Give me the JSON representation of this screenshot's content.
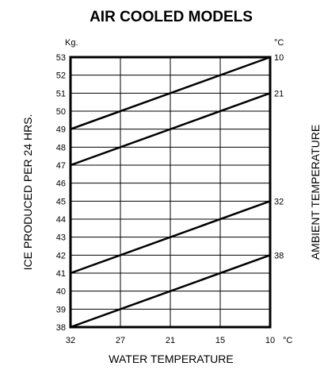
{
  "chart_data": {
    "type": "line",
    "title": "AIR COOLED MODELS",
    "xlabel": "WATER TEMPERATURE",
    "ylabel": "ICE PRODUCED PER 24 HRS.",
    "y2label": "AMBIENT TEMPERATURE",
    "y_unit": "Kg.",
    "x_unit": "°C",
    "legend_unit": "°C",
    "x_ticks": [
      "32",
      "27",
      "21",
      "15",
      "10"
    ],
    "y_ticks": [
      38,
      39,
      40,
      41,
      42,
      43,
      44,
      45,
      46,
      47,
      48,
      49,
      50,
      51,
      52,
      53
    ],
    "ylim": [
      38,
      53
    ],
    "grid": true,
    "series": [
      {
        "name": "10",
        "x": [
          "32",
          "10"
        ],
        "values": [
          49,
          53
        ]
      },
      {
        "name": "21",
        "x": [
          "32",
          "10"
        ],
        "values": [
          47,
          51
        ]
      },
      {
        "name": "32",
        "x": [
          "32",
          "10"
        ],
        "values": [
          41,
          45
        ]
      },
      {
        "name": "38",
        "x": [
          "32",
          "10"
        ],
        "values": [
          38,
          42
        ]
      }
    ]
  }
}
